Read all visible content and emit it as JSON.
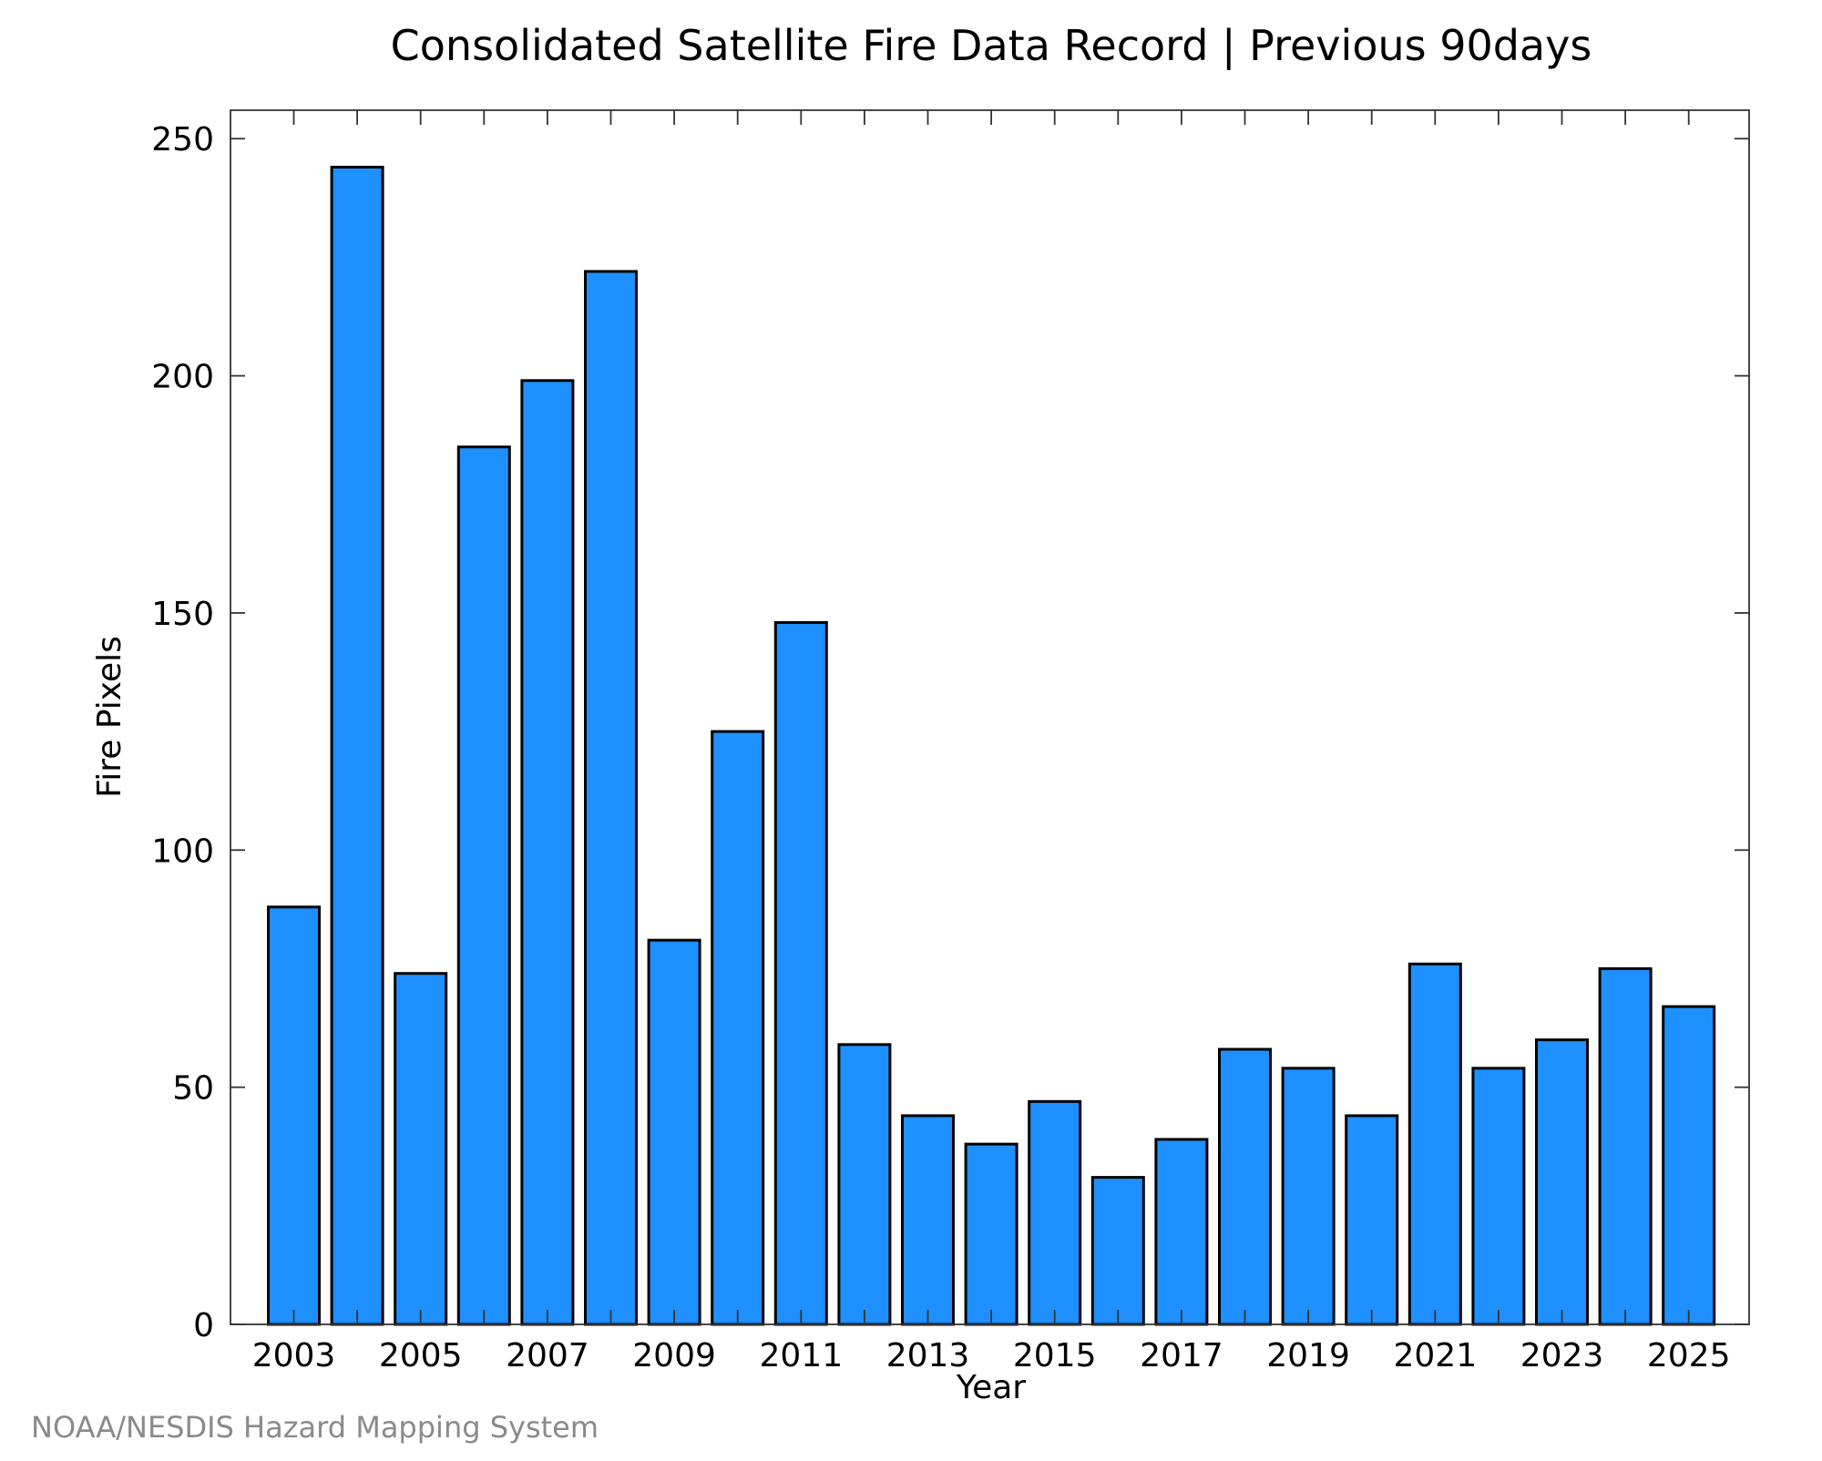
{
  "chart_data": {
    "type": "bar",
    "title": "Consolidated Satellite Fire Data Record | Previous 90days",
    "xlabel": "Year",
    "ylabel": "Fire Pixels",
    "categories": [
      "2003",
      "2004",
      "2005",
      "2006",
      "2007",
      "2008",
      "2009",
      "2010",
      "2011",
      "2012",
      "2013",
      "2014",
      "2015",
      "2016",
      "2017",
      "2018",
      "2019",
      "2020",
      "2021",
      "2022",
      "2023",
      "2024",
      "2025"
    ],
    "values": [
      88,
      244,
      74,
      185,
      199,
      222,
      81,
      125,
      148,
      59,
      44,
      38,
      47,
      31,
      39,
      58,
      54,
      44,
      76,
      54,
      60,
      75,
      67
    ],
    "ylim": [
      0,
      256
    ],
    "yticks": [
      0,
      50,
      100,
      150,
      200,
      250
    ],
    "xtick_labels": [
      "2003",
      "2005",
      "2007",
      "2009",
      "2011",
      "2013",
      "2015",
      "2017",
      "2019",
      "2021",
      "2023",
      "2025"
    ],
    "bar_color": "#1e90ff",
    "bar_edge_color": "#000000",
    "grid": false,
    "legend": "none"
  },
  "footer": {
    "credit": "NOAA/NESDIS Hazard Mapping System"
  }
}
